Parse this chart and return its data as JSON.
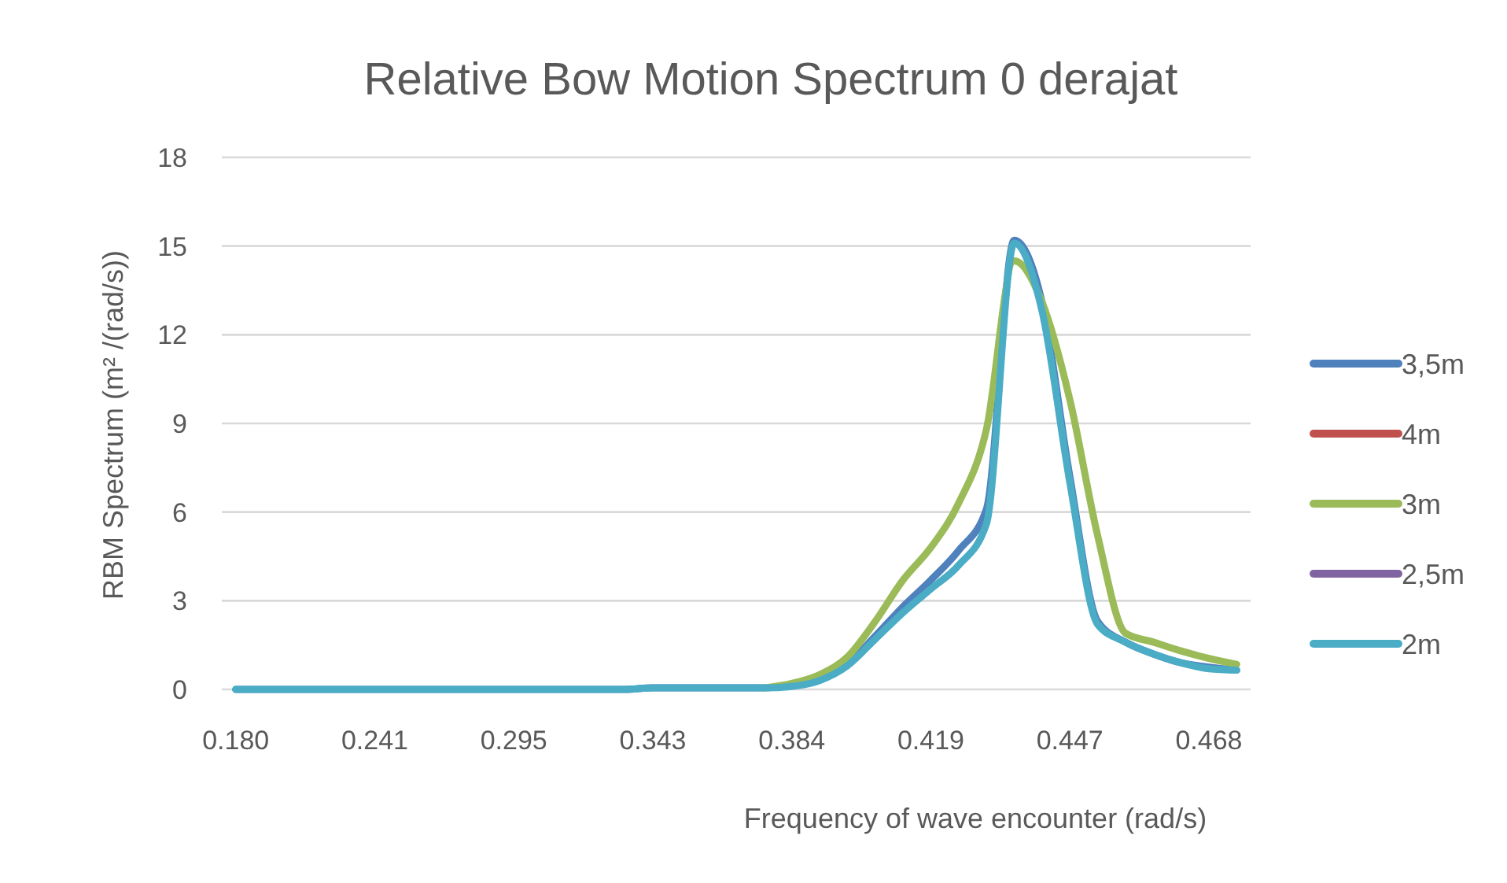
{
  "chart_data": {
    "type": "line",
    "title": "Relative Bow Motion Spectrum 0 derajat",
    "xlabel": "Frequency of wave encounter (rad/s)",
    "ylabel": "RBM Spectrum  (m² /(rad/s))",
    "categories": [
      "0.180",
      null,
      null,
      null,
      null,
      "0.241",
      null,
      null,
      null,
      null,
      "0.295",
      null,
      null,
      null,
      null,
      "0.343",
      null,
      null,
      null,
      null,
      "0.384",
      null,
      null,
      null,
      null,
      "0.419",
      null,
      null,
      null,
      null,
      "0.447",
      null,
      null,
      null,
      null,
      "0.468",
      null
    ],
    "series": [
      {
        "name": "3,5m",
        "color": "#4f81bd",
        "values": [
          0,
          0,
          0,
          0,
          0,
          0,
          0,
          0,
          0,
          0,
          0,
          0,
          0,
          0,
          0,
          0.05,
          0.05,
          0.05,
          0.05,
          0.05,
          0.15,
          0.35,
          0.85,
          1.8,
          2.8,
          3.7,
          4.7,
          6.1,
          15.2,
          13.1,
          7.2,
          2.3,
          1.6,
          1.2,
          0.9,
          0.75,
          0.65
        ]
      },
      {
        "name": "4m",
        "color": "#c0504d",
        "values": [
          null,
          null,
          null,
          null,
          null,
          null,
          null,
          null,
          null,
          null,
          null,
          null,
          null,
          null,
          null,
          null,
          null,
          null,
          null,
          null,
          null,
          null,
          null,
          null,
          null,
          null,
          null,
          null,
          null,
          null,
          null,
          null,
          null,
          null,
          null,
          null,
          null
        ]
      },
      {
        "name": "3m",
        "color": "#9bbb59",
        "values": [
          null,
          null,
          null,
          null,
          null,
          null,
          null,
          null,
          null,
          null,
          null,
          null,
          null,
          null,
          null,
          null,
          null,
          null,
          null,
          0.05,
          0.2,
          0.5,
          1.1,
          2.3,
          3.7,
          4.8,
          6.3,
          8.8,
          14.5,
          13.1,
          9.8,
          5.2,
          1.9,
          1.6,
          1.3,
          1.05,
          0.85
        ]
      },
      {
        "name": "2,5m",
        "color": "#8064a2",
        "values": [
          null,
          null,
          null,
          null,
          null,
          null,
          null,
          null,
          null,
          null,
          null,
          null,
          null,
          null,
          null,
          null,
          null,
          null,
          null,
          null,
          null,
          null,
          null,
          null,
          null,
          null,
          null,
          null,
          null,
          null,
          null,
          null,
          null,
          null,
          null,
          null,
          null
        ]
      },
      {
        "name": "2m",
        "color": "#4bacc6",
        "values": [
          0,
          0,
          0,
          0,
          0,
          0,
          0,
          0,
          0,
          0,
          0,
          0,
          0,
          0,
          0,
          0.05,
          0.05,
          0.05,
          0.05,
          0.05,
          0.1,
          0.3,
          0.8,
          1.7,
          2.6,
          3.4,
          4.2,
          5.6,
          15.1,
          12.8,
          7.0,
          2.2,
          1.6,
          1.2,
          0.9,
          0.7,
          0.65
        ]
      }
    ],
    "ylim": [
      0,
      18
    ],
    "yticks": [
      0,
      3,
      6,
      9,
      12,
      15,
      18
    ],
    "grid": "y",
    "legend": "right",
    "line_style": "solid"
  }
}
